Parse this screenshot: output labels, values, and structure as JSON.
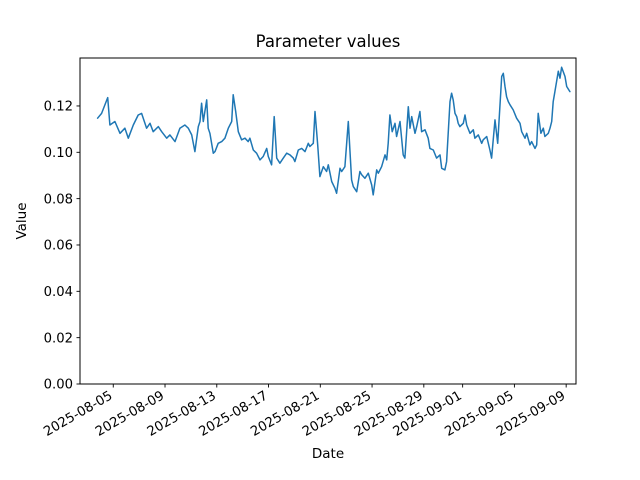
{
  "figure": {
    "title": "Parameter values"
  },
  "chart_data": {
    "type": "line",
    "title": "Parameter values",
    "xlabel": "Date",
    "ylabel": "Value",
    "grid": false,
    "legend": "none",
    "line_color": "#1f77b4",
    "line_width": 1.5,
    "x_axis": {
      "start_date": "2025-08-05",
      "tick_labels": [
        "2025-08-05",
        "2025-08-09",
        "2025-08-13",
        "2025-08-17",
        "2025-08-21",
        "2025-08-25",
        "2025-08-29",
        "2025-09-01",
        "2025-09-05",
        "2025-09-09"
      ],
      "tick_days": [
        0,
        4,
        8,
        12,
        16,
        20,
        24,
        27,
        31,
        35
      ],
      "xlim_days": [
        -2.57,
        35.76
      ],
      "tick_label_rotation_deg": 30
    },
    "y_axis": {
      "tick_labels": [
        "0.00",
        "0.02",
        "0.04",
        "0.06",
        "0.08",
        "0.10",
        "0.12"
      ],
      "tick_values": [
        0,
        0.02,
        0.04,
        0.06,
        0.08,
        0.1,
        0.12
      ],
      "ylim": [
        0,
        0.1407
      ]
    },
    "series": [
      {
        "name": "parameter-values",
        "x_days": [
          -1.21,
          -0.9,
          -0.43,
          -0.26,
          0.13,
          0.52,
          0.9,
          1.16,
          1.55,
          1.93,
          2.19,
          2.58,
          2.84,
          3.09,
          3.48,
          3.74,
          4.13,
          4.38,
          4.77,
          5.15,
          5.54,
          5.8,
          6.06,
          6.31,
          6.57,
          6.7,
          6.83,
          6.96,
          7.22,
          7.34,
          7.47,
          7.73,
          7.86,
          8.11,
          8.38,
          8.63,
          8.89,
          9.15,
          9.27,
          9.46,
          9.66,
          9.92,
          10.18,
          10.43,
          10.56,
          10.82,
          11.08,
          11.34,
          11.59,
          11.86,
          11.98,
          12.24,
          12.44,
          12.63,
          12.88,
          13.14,
          13.4,
          13.66,
          13.91,
          14.04,
          14.3,
          14.56,
          14.82,
          15.07,
          15.2,
          15.46,
          15.59,
          15.8,
          15.97,
          16.23,
          16.49,
          16.62,
          16.88,
          17.13,
          17.26,
          17.52,
          17.65,
          17.9,
          18.16,
          18.42,
          18.55,
          18.81,
          19.06,
          19.2,
          19.45,
          19.71,
          19.97,
          20.09,
          20.36,
          20.48,
          20.74,
          21.0,
          21.13,
          21.25,
          21.38,
          21.56,
          21.77,
          21.9,
          22.16,
          22.41,
          22.54,
          22.8,
          22.93,
          23.06,
          23.32,
          23.45,
          23.7,
          23.83,
          24.09,
          24.34,
          24.47,
          24.73,
          24.99,
          25.25,
          25.38,
          25.63,
          25.76,
          26.02,
          26.15,
          26.27,
          26.41,
          26.54,
          26.66,
          26.79,
          27.05,
          27.18,
          27.31,
          27.57,
          27.82,
          27.95,
          28.21,
          28.47,
          28.59,
          28.86,
          29.11,
          29.24,
          29.5,
          29.71,
          30.02,
          30.14,
          30.27,
          30.4,
          30.53,
          30.66,
          30.91,
          31.17,
          31.43,
          31.56,
          31.82,
          31.95,
          32.2,
          32.33,
          32.59,
          32.72,
          32.84,
          33.05,
          33.23,
          33.36,
          33.62,
          33.75,
          33.88,
          34.0,
          34.13,
          34.39,
          34.52,
          34.65,
          34.91,
          35.04,
          35.29
        ],
        "values": [
          0.1147,
          0.1168,
          0.1236,
          0.1118,
          0.1133,
          0.1082,
          0.1104,
          0.1061,
          0.1118,
          0.1161,
          0.1168,
          0.1104,
          0.1125,
          0.1089,
          0.1111,
          0.1089,
          0.1061,
          0.1075,
          0.1046,
          0.1104,
          0.1118,
          0.1104,
          0.1075,
          0.1003,
          0.1111,
          0.1133,
          0.1212,
          0.1133,
          0.1226,
          0.1104,
          0.1082,
          0.0996,
          0.1003,
          0.1039,
          0.1046,
          0.1061,
          0.1104,
          0.1133,
          0.1248,
          0.1176,
          0.1089,
          0.1054,
          0.1061,
          0.1046,
          0.1061,
          0.101,
          0.0996,
          0.0967,
          0.0982,
          0.1017,
          0.0982,
          0.0946,
          0.1154,
          0.0975,
          0.0953,
          0.0975,
          0.0996,
          0.0989,
          0.0975,
          0.096,
          0.101,
          0.1017,
          0.1003,
          0.1039,
          0.1025,
          0.1039,
          0.1176,
          0.1032,
          0.0895,
          0.0938,
          0.0917,
          0.0946,
          0.0874,
          0.0845,
          0.0823,
          0.0931,
          0.0917,
          0.0938,
          0.1133,
          0.0881,
          0.0852,
          0.083,
          0.0917,
          0.0903,
          0.0888,
          0.091,
          0.0859,
          0.0816,
          0.0924,
          0.091,
          0.0938,
          0.0989,
          0.0967,
          0.1039,
          0.1161,
          0.1089,
          0.1125,
          0.1068,
          0.1133,
          0.0989,
          0.0975,
          0.1197,
          0.1104,
          0.1154,
          0.1082,
          0.1111,
          0.1176,
          0.1089,
          0.1097,
          0.1061,
          0.1017,
          0.101,
          0.0975,
          0.0989,
          0.0931,
          0.0924,
          0.096,
          0.1219,
          0.1255,
          0.1226,
          0.1168,
          0.1154,
          0.1125,
          0.1111,
          0.1125,
          0.1161,
          0.1118,
          0.1082,
          0.1097,
          0.1061,
          0.1075,
          0.1039,
          0.1054,
          0.1068,
          0.101,
          0.0975,
          0.114,
          0.1039,
          0.1327,
          0.1341,
          0.1284,
          0.124,
          0.1219,
          0.1205,
          0.1183,
          0.1147,
          0.1125,
          0.1089,
          0.1061,
          0.1082,
          0.1032,
          0.1046,
          0.1017,
          0.1032,
          0.1168,
          0.1082,
          0.1104,
          0.1068,
          0.1082,
          0.1104,
          0.1133,
          0.1219,
          0.1262,
          0.135,
          0.132,
          0.1367,
          0.1327,
          0.1284,
          0.1262
        ]
      }
    ]
  }
}
